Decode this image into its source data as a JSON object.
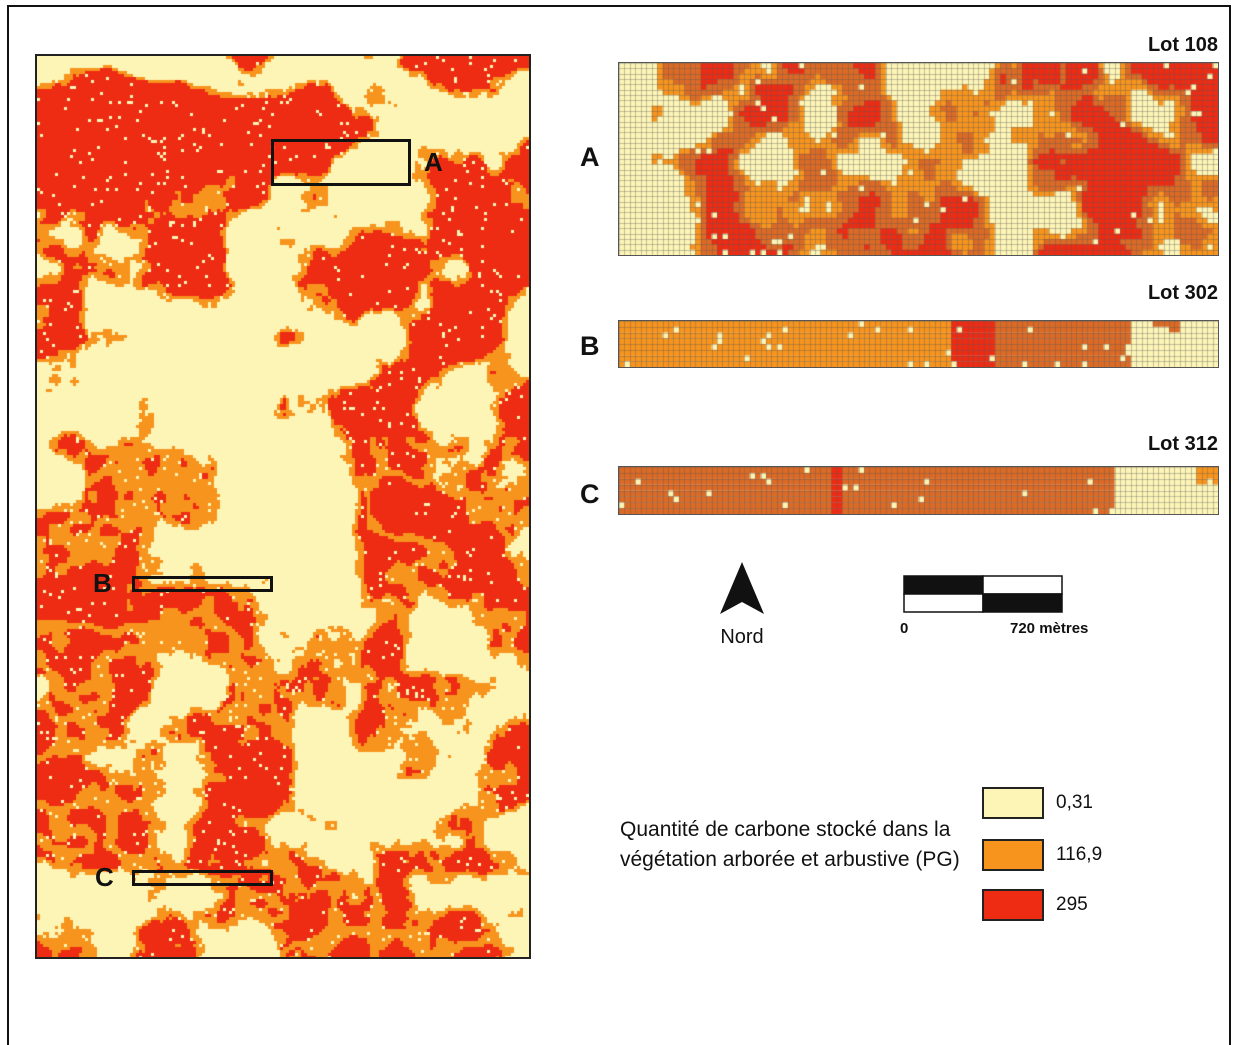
{
  "colors": {
    "low": "#fdf5b6",
    "mid": "#f7941d",
    "mid_dark": "#dc6a25",
    "high": "#ee2b13",
    "grid_line": "#777777"
  },
  "overview_map": {
    "labels": {
      "a": "A",
      "b": "B",
      "c": "C"
    }
  },
  "lots": [
    {
      "letter": "A",
      "title": "Lot 108"
    },
    {
      "letter": "B",
      "title": "Lot 302"
    },
    {
      "letter": "C",
      "title": "Lot 312"
    }
  ],
  "north_arrow": {
    "icon": "north-arrow-icon",
    "label": "Nord"
  },
  "scale_bar": {
    "start_label": "0",
    "end_label": "720 mètres"
  },
  "legend": {
    "title": "Quantité de carbone stocké dans la végétation arborée et arbustive (PG)",
    "items": [
      {
        "value": "0,31",
        "color": "#fdf5b6"
      },
      {
        "value": "116,9",
        "color": "#f7941d"
      },
      {
        "value": "295",
        "color": "#ee2b13"
      }
    ]
  }
}
